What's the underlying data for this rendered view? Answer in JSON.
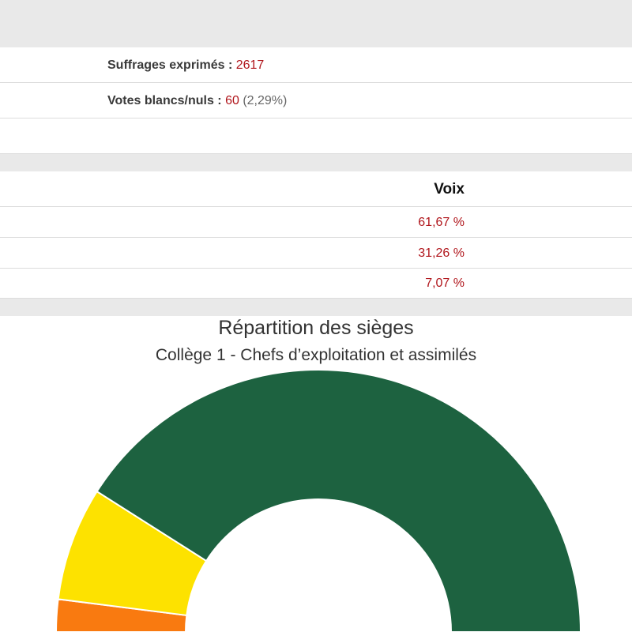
{
  "stats": {
    "suffrages": {
      "label": "Suffrages exprimés :",
      "value": "2617"
    },
    "blancs": {
      "label": "Votes blancs/nuls :",
      "value": "60",
      "percent": "(2,29%)"
    }
  },
  "results": {
    "header": "Voix",
    "rows": [
      "61,67 %",
      "31,26 %",
      "7,07 %"
    ]
  },
  "chart_data": {
    "type": "pie",
    "variant": "semicircle-donut",
    "title": "Répartition des sièges",
    "subtitle": "Collège 1 - Chefs d’exploitation et assimilés",
    "slices": [
      {
        "fraction": 0.04,
        "color": "#f97a10"
      },
      {
        "fraction": 0.14,
        "color": "#fde200"
      },
      {
        "fraction": 0.82,
        "color": "#1d6240"
      }
    ],
    "legend": "none"
  }
}
